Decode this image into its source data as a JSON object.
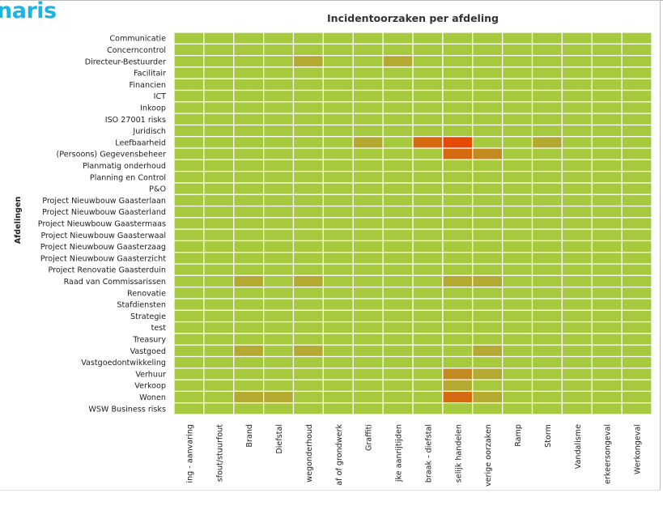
{
  "logo_text": "naris",
  "chart_data": {
    "type": "heatmap",
    "title": "Incidentoorzaken per afdeling",
    "ylabel": "Afdelingen",
    "xlabel": "",
    "columns": [
      "ing - aanvaring",
      "sfout/stuurfout",
      "Brand",
      "Diefstal",
      "wegonderhoud",
      "af of grondwerk",
      "Graffiti",
      "jke aanrijtijden",
      "braak - diefstal",
      "selijk handelen",
      "verige oorzaken",
      "Ramp",
      "Storm",
      "Vandalisme",
      "erkeersongeval",
      "Werkongeval"
    ],
    "rows": [
      "Communicatie",
      "Concerncontrol",
      "Directeur-Bestuurder",
      "Facilitair",
      "Financien",
      "ICT",
      "Inkoop",
      "ISO 27001 risks",
      "Juridisch",
      "Leefbaarheid",
      "(Persoons) Gegevensbeheer",
      "Planmatig onderhoud",
      "Planning en Control",
      "P&O",
      "Project Nieuwbouw Gaasterlaan",
      "Project Nieuwbouw Gaasterland",
      "Project Nieuwbouw Gaastermaas",
      "Project Nieuwbouw Gaasterwaal",
      "Project Nieuwbouw Gaasterzaag",
      "Project Nieuwbouw Gaasterzicht",
      "Project Renovatie Gaasterduin",
      "Raad van Commissarissen",
      "Renovatie",
      "Stafdiensten",
      "Strategie",
      "test",
      "Treasury",
      "Vastgoed",
      "Vastgoedontwikkeling",
      "Verhuur",
      "Verkoop",
      "Wonen",
      "WSW Business risks"
    ],
    "nonzero_cells": [
      {
        "row": "Directeur-Bestuurder",
        "col": 4,
        "level": 1
      },
      {
        "row": "Directeur-Bestuurder",
        "col": 7,
        "level": 1
      },
      {
        "row": "Leefbaarheid",
        "col": 6,
        "level": 1
      },
      {
        "row": "Leefbaarheid",
        "col": 8,
        "level": 3
      },
      {
        "row": "Leefbaarheid",
        "col": 9,
        "level": 4
      },
      {
        "row": "Leefbaarheid",
        "col": 12,
        "level": 1
      },
      {
        "row": "(Persoons) Gegevensbeheer",
        "col": 9,
        "level": 3
      },
      {
        "row": "(Persoons) Gegevensbeheer",
        "col": 10,
        "level": 2
      },
      {
        "row": "Raad van Commissarissen",
        "col": 2,
        "level": 1
      },
      {
        "row": "Raad van Commissarissen",
        "col": 4,
        "level": 1
      },
      {
        "row": "Raad van Commissarissen",
        "col": 9,
        "level": 1
      },
      {
        "row": "Raad van Commissarissen",
        "col": 10,
        "level": 1
      },
      {
        "row": "Vastgoed",
        "col": 2,
        "level": 1
      },
      {
        "row": "Vastgoed",
        "col": 4,
        "level": 1
      },
      {
        "row": "Vastgoed",
        "col": 10,
        "level": 1
      },
      {
        "row": "Verhuur",
        "col": 9,
        "level": 2
      },
      {
        "row": "Verhuur",
        "col": 10,
        "level": 1
      },
      {
        "row": "Verkoop",
        "col": 9,
        "level": 1
      },
      {
        "row": "Wonen",
        "col": 2,
        "level": 1
      },
      {
        "row": "Wonen",
        "col": 3,
        "level": 1
      },
      {
        "row": "Wonen",
        "col": 9,
        "level": 3
      },
      {
        "row": "Wonen",
        "col": 10,
        "level": 1
      }
    ],
    "color_scale": [
      "#a6c93e",
      "#b4aa32",
      "#c48a22",
      "#d66a10",
      "#e54a04"
    ],
    "grid_line_color": "#ffffff"
  }
}
